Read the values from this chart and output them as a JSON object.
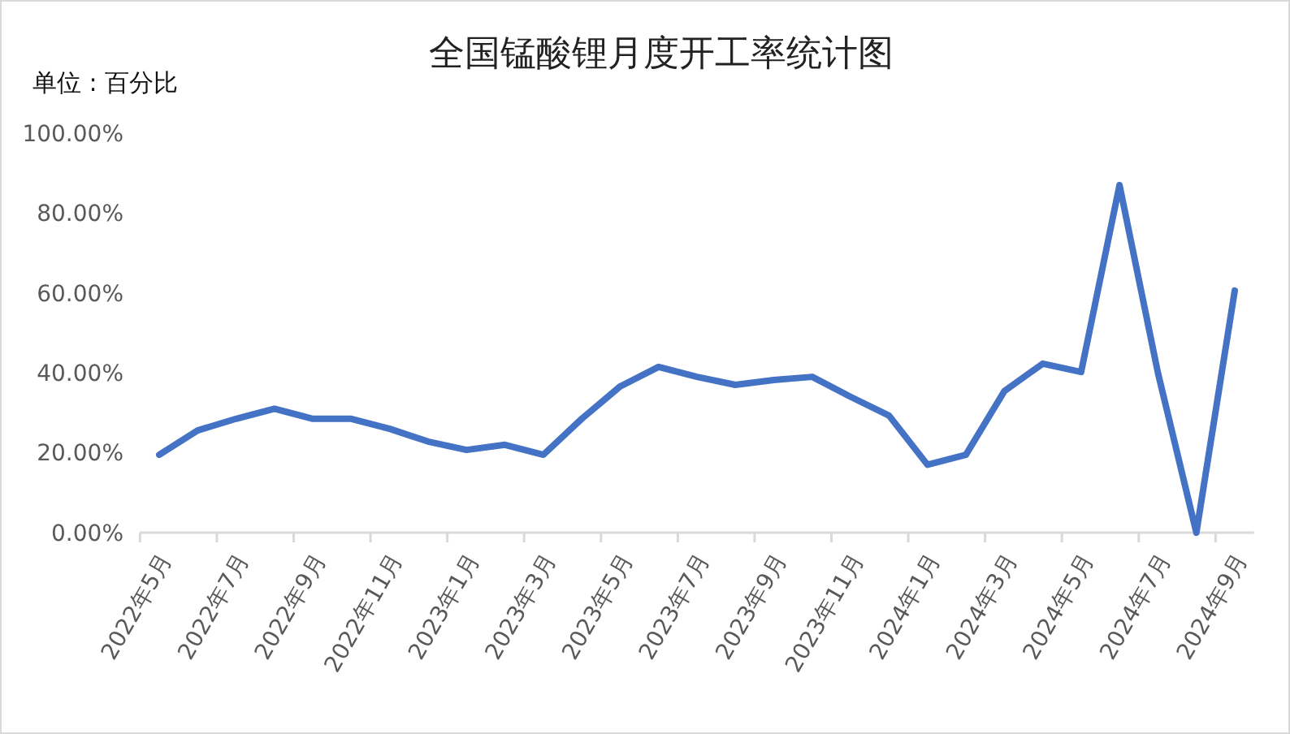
{
  "chart_data": {
    "type": "line",
    "title": "全国锰酸锂月度开工率统计图",
    "ylabel": "单位 : 百分比",
    "categories": [
      "2022年5月",
      null,
      "2022年7月",
      null,
      "2022年9月",
      null,
      "2022年11月",
      null,
      "2023年1月",
      null,
      "2023年3月",
      null,
      "2023年5月",
      null,
      "2023年7月",
      null,
      "2023年9月",
      null,
      "2023年11月",
      null,
      "2024年1月",
      null,
      "2024年3月",
      null,
      "2024年5月",
      null,
      "2024年7月",
      null,
      "2024年9月"
    ],
    "series": [
      {
        "color": "#4472c4",
        "values": [
          19.5,
          25.6,
          28.5,
          31,
          28.5,
          28.5,
          26,
          22.8,
          20.7,
          22,
          19.5,
          28.5,
          36.6,
          41.5,
          39,
          37,
          38.2,
          39,
          34,
          29.3,
          17,
          19.5,
          35.4,
          42.3,
          40.2,
          87,
          40,
          0,
          60.6
        ]
      }
    ],
    "ylim": [
      0,
      100
    ],
    "yticks": [
      {
        "value": 0,
        "label": "0.00%"
      },
      {
        "value": 20,
        "label": "20.00%"
      },
      {
        "value": 40,
        "label": "40.00%"
      },
      {
        "value": 60,
        "label": "60.00%"
      },
      {
        "value": 80,
        "label": "80.00%"
      },
      {
        "value": 100,
        "label": "100.00%"
      }
    ],
    "grid": false,
    "marker": "none",
    "line_style": "solid"
  }
}
